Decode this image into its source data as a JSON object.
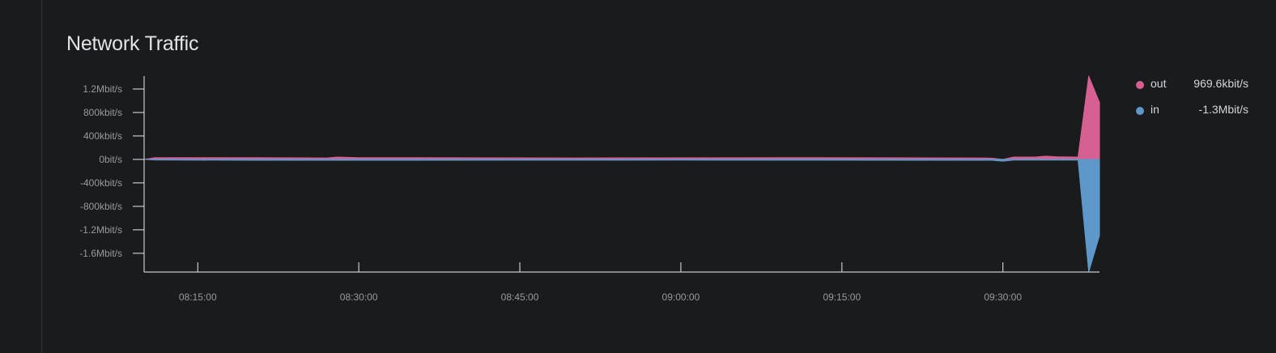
{
  "panel": {
    "title": "Network Traffic"
  },
  "legend": [
    {
      "name": "out",
      "value": "969.6kbit/s",
      "color": "#d6608f"
    },
    {
      "name": "in",
      "value": "-1.3Mbit/s",
      "color": "#5e97c9"
    }
  ],
  "chart_data": {
    "type": "area",
    "title": "Network Traffic",
    "y_unit": "kbit/s",
    "y_ticks": [
      {
        "value": 1200,
        "label": "1.2Mbit/s"
      },
      {
        "value": 800,
        "label": "800kbit/s"
      },
      {
        "value": 400,
        "label": "400kbit/s"
      },
      {
        "value": 0,
        "label": "0bit/s"
      },
      {
        "value": -400,
        "label": "-400kbit/s"
      },
      {
        "value": -800,
        "label": "-800kbit/s"
      },
      {
        "value": -1200,
        "label": "-1.2Mbit/s"
      },
      {
        "value": -1600,
        "label": "-1.6Mbit/s"
      }
    ],
    "ylim": [
      -1920,
      1420
    ],
    "xlim": [
      "08:10:00",
      "09:39:00"
    ],
    "x_ticks": [
      "08:15:00",
      "08:30:00",
      "08:45:00",
      "09:00:00",
      "09:15:00",
      "09:30:00"
    ],
    "series": [
      {
        "name": "out",
        "color": "#d6608f",
        "points": [
          [
            "08:10:00",
            0
          ],
          [
            "08:11:00",
            30
          ],
          [
            "08:20:00",
            30
          ],
          [
            "08:27:00",
            25
          ],
          [
            "08:28:00",
            40
          ],
          [
            "08:30:00",
            30
          ],
          [
            "08:50:00",
            25
          ],
          [
            "09:10:00",
            30
          ],
          [
            "09:28:00",
            25
          ],
          [
            "09:29:00",
            20
          ],
          [
            "09:30:00",
            0
          ],
          [
            "09:31:00",
            40
          ],
          [
            "09:33:00",
            40
          ],
          [
            "09:34:00",
            55
          ],
          [
            "09:35:00",
            45
          ],
          [
            "09:37:00",
            40
          ],
          [
            "09:38:00",
            1420
          ],
          [
            "09:39:00",
            969.6
          ]
        ]
      },
      {
        "name": "in",
        "color": "#5e97c9",
        "points": [
          [
            "08:10:00",
            0
          ],
          [
            "08:11:00",
            -10
          ],
          [
            "08:20:00",
            -15
          ],
          [
            "08:30:00",
            -15
          ],
          [
            "09:00:00",
            -12
          ],
          [
            "09:29:00",
            -15
          ],
          [
            "09:30:00",
            -30
          ],
          [
            "09:31:00",
            -12
          ],
          [
            "09:37:00",
            -10
          ],
          [
            "09:38:00",
            -1920
          ],
          [
            "09:39:00",
            -1300
          ]
        ]
      }
    ]
  }
}
